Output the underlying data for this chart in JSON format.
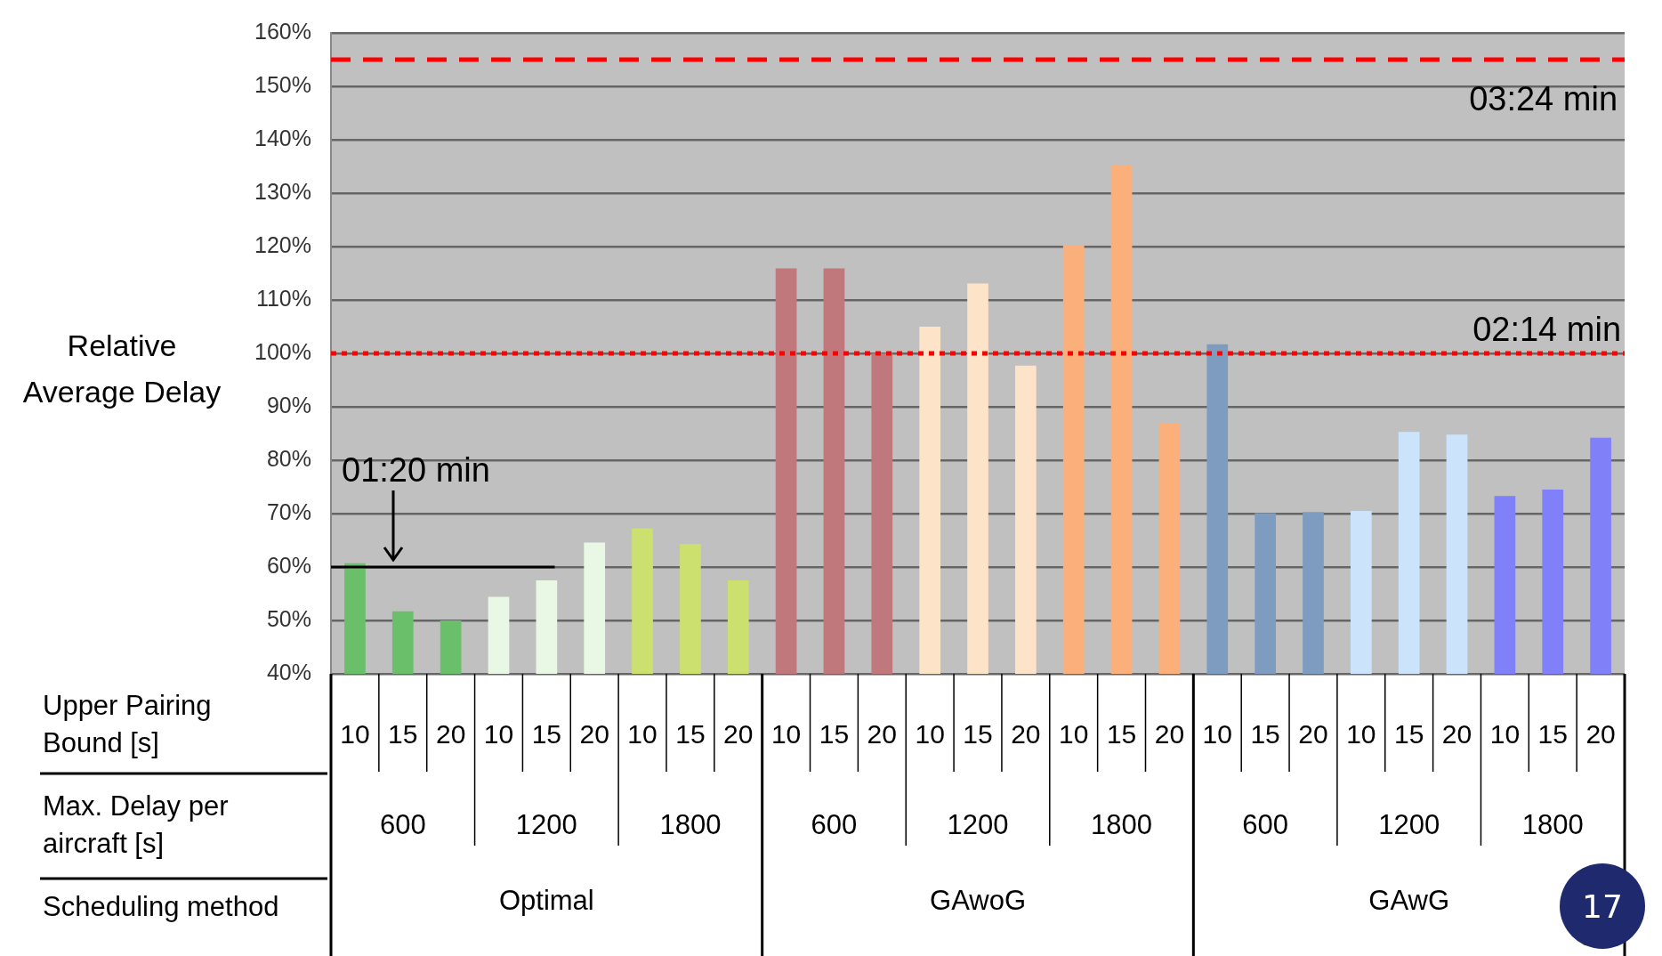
{
  "chart_data": {
    "type": "bar",
    "ylabel": "Relative Average Delay",
    "xlabel": "Upper Pairing Bound [s]",
    "categories": [
      "10",
      "15",
      "20",
      "10",
      "15",
      "20",
      "10",
      "15",
      "20",
      "10",
      "15",
      "20",
      "10",
      "15",
      "20",
      "10",
      "15",
      "20",
      "10",
      "15",
      "20",
      "10",
      "15",
      "20",
      "10",
      "15",
      "20"
    ],
    "values": [
      60.7,
      51.7,
      50,
      54.4,
      57.5,
      64.6,
      67.2,
      64.3,
      57.5,
      115.9,
      115.9,
      100,
      105,
      113.1,
      97.7,
      120.2,
      135.3,
      87,
      101.7,
      70.1,
      70.3,
      70.5,
      85.3,
      84.8,
      73.3,
      74.5,
      84.2
    ],
    "colors": [
      "#6abf6a",
      "#6abf6a",
      "#6abf6a",
      "#e8f8e4",
      "#e8f8e4",
      "#e8f8e4",
      "#cce070",
      "#cce070",
      "#cce070",
      "#c0787c",
      "#c0787c",
      "#c0787c",
      "#fde3c8",
      "#fde3c8",
      "#fde3c8",
      "#fbb07c",
      "#fbb07c",
      "#fbb07c",
      "#7e9cc0",
      "#7e9cc0",
      "#7e9cc0",
      "#cce4fb",
      "#cce4fb",
      "#cce4fb",
      "#8080f8",
      "#8080f8",
      "#8080f8"
    ],
    "ylim": [
      40,
      160
    ],
    "yticks": [
      {
        "value": 40,
        "label": "40%"
      },
      {
        "value": 50,
        "label": "50%"
      },
      {
        "value": 60,
        "label": "60%"
      },
      {
        "value": 70,
        "label": "70%"
      },
      {
        "value": 80,
        "label": "80%"
      },
      {
        "value": 90,
        "label": "90%"
      },
      {
        "value": 100,
        "label": "100%"
      },
      {
        "value": 110,
        "label": "110%"
      },
      {
        "value": 120,
        "label": "120%"
      },
      {
        "value": 130,
        "label": "130%"
      },
      {
        "value": 140,
        "label": "140%"
      },
      {
        "value": 150,
        "label": "150%"
      },
      {
        "value": 160,
        "label": "160%"
      }
    ],
    "grid": "y",
    "ref_lines": [
      {
        "axis": "y",
        "value": 155,
        "color": "#ff0000",
        "line_style": "dashed"
      },
      {
        "axis": "y",
        "value": 100,
        "color": "#ff0000",
        "line_style": "dotted"
      },
      {
        "axis": "y",
        "value": 60,
        "color": "#000000",
        "line_style": "solid"
      }
    ],
    "annotations": [
      "Max. Delay per aircraft [s]",
      "Scheduling method",
      "600",
      "1200",
      "1800",
      "600",
      "1200",
      "1800",
      "600",
      "1200",
      "1800",
      "Optimal",
      "GAwoG",
      "GAwG",
      "17",
      {
        "text": "03:24 min",
        "y": 155
      },
      {
        "text": "02:14 min",
        "y": 100
      },
      {
        "text": "01:20 min",
        "y": 60
      }
    ]
  }
}
